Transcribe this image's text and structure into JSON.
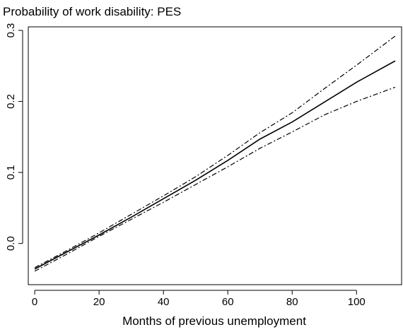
{
  "chart_data": {
    "type": "line",
    "title": "Probability of work disability: PES",
    "xlabel": "Months of previous unemployment",
    "ylabel": "",
    "xlim": [
      -2,
      114
    ],
    "ylim": [
      -0.058,
      0.305
    ],
    "x_ticks": [
      0,
      20,
      40,
      60,
      80,
      100
    ],
    "x_tick_labels": [
      "0",
      "20",
      "40",
      "60",
      "80",
      "100"
    ],
    "y_ticks": [
      0.0,
      0.1,
      0.2,
      0.3
    ],
    "y_tick_labels": [
      "0.0",
      "0.1",
      "0.2",
      "0.3"
    ],
    "grid": false,
    "legend": "none",
    "series": [
      {
        "style": "solid",
        "color": "#000000",
        "x": [
          0,
          10,
          20,
          30,
          40,
          50,
          60,
          70,
          80,
          90,
          100,
          112
        ],
        "y": [
          -0.036,
          -0.012,
          0.012,
          0.037,
          0.063,
          0.089,
          0.117,
          0.147,
          0.171,
          0.199,
          0.227,
          0.257
        ]
      },
      {
        "style": "dashdot",
        "color": "#000000",
        "x": [
          0,
          10,
          20,
          30,
          40,
          50,
          60,
          70,
          80,
          90,
          100,
          112
        ],
        "y": [
          -0.034,
          -0.01,
          0.015,
          0.041,
          0.067,
          0.094,
          0.124,
          0.156,
          0.184,
          0.218,
          0.251,
          0.292
        ]
      },
      {
        "style": "dashdot",
        "color": "#000000",
        "x": [
          0,
          10,
          20,
          30,
          40,
          50,
          60,
          70,
          80,
          90,
          100,
          112
        ],
        "y": [
          -0.039,
          -0.015,
          0.01,
          0.034,
          0.058,
          0.083,
          0.108,
          0.134,
          0.157,
          0.181,
          0.2,
          0.22
        ]
      }
    ]
  }
}
